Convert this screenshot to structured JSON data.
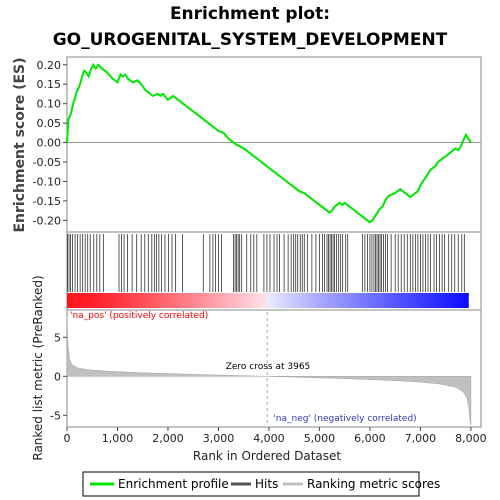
{
  "chart_data": {
    "type": "line",
    "title": "Enrichment plot:",
    "subtitle": "GO_UROGENITAL_SYSTEM_DEVELOPMENT",
    "xlabel": "Rank in Ordered Dataset",
    "xlim": [
      0,
      8200
    ],
    "x_ticks": [
      "0",
      "1,000",
      "2,000",
      "3,000",
      "4,000",
      "5,000",
      "6,000",
      "7,000",
      "8,000"
    ],
    "x_tick_values": [
      0,
      1000,
      2000,
      3000,
      4000,
      5000,
      6000,
      7000,
      8000
    ],
    "es_panel": {
      "ylabel": "Enrichment score (ES)",
      "ylim": [
        -0.23,
        0.22
      ],
      "y_ticks": [
        "0.20",
        "0.15",
        "0.10",
        "0.05",
        "0.00",
        "-0.05",
        "-0.10",
        "-0.15",
        "-0.20"
      ],
      "y_tick_values": [
        0.2,
        0.15,
        0.1,
        0.05,
        0.0,
        -0.05,
        -0.1,
        -0.15,
        -0.2
      ],
      "series": [
        {
          "name": "Enrichment profile",
          "color": "#00e600",
          "x": [
            0,
            30,
            80,
            120,
            150,
            190,
            230,
            270,
            300,
            340,
            380,
            430,
            480,
            520,
            570,
            620,
            700,
            800,
            900,
            1000,
            1060,
            1100,
            1150,
            1200,
            1300,
            1400,
            1500,
            1550,
            1600,
            1700,
            1800,
            1850,
            1900,
            2000,
            2100,
            2200,
            2300,
            2400,
            2500,
            2600,
            2700,
            2800,
            2900,
            3000,
            3100,
            3200,
            3300,
            3350,
            3400,
            3500,
            3600,
            3700,
            3800,
            3900,
            4000,
            4100,
            4200,
            4300,
            4400,
            4500,
            4600,
            4700,
            4800,
            4900,
            5000,
            5100,
            5150,
            5200,
            5250,
            5300,
            5350,
            5400,
            5450,
            5500,
            5600,
            5700,
            5800,
            5900,
            5950,
            6000,
            6050,
            6100,
            6150,
            6200,
            6250,
            6300,
            6350,
            6400,
            6500,
            6550,
            6600,
            6650,
            6700,
            6800,
            6900,
            6950,
            7000,
            7050,
            7100,
            7150,
            7200,
            7300,
            7350,
            7400,
            7450,
            7500,
            7600,
            7650,
            7700,
            7750,
            7800,
            7850,
            7900,
            7950,
            8000
          ],
          "y": [
            0.0,
            0.06,
            0.075,
            0.1,
            0.11,
            0.13,
            0.14,
            0.155,
            0.17,
            0.185,
            0.18,
            0.17,
            0.19,
            0.2,
            0.19,
            0.2,
            0.19,
            0.18,
            0.165,
            0.155,
            0.175,
            0.17,
            0.175,
            0.165,
            0.155,
            0.16,
            0.145,
            0.135,
            0.13,
            0.12,
            0.125,
            0.12,
            0.125,
            0.11,
            0.12,
            0.11,
            0.1,
            0.09,
            0.08,
            0.07,
            0.06,
            0.05,
            0.04,
            0.03,
            0.025,
            0.01,
            0.0,
            -0.005,
            -0.008,
            -0.015,
            -0.025,
            -0.035,
            -0.045,
            -0.055,
            -0.065,
            -0.075,
            -0.085,
            -0.095,
            -0.105,
            -0.115,
            -0.125,
            -0.13,
            -0.14,
            -0.15,
            -0.16,
            -0.17,
            -0.175,
            -0.18,
            -0.175,
            -0.165,
            -0.16,
            -0.155,
            -0.16,
            -0.155,
            -0.165,
            -0.175,
            -0.185,
            -0.195,
            -0.2,
            -0.205,
            -0.2,
            -0.19,
            -0.18,
            -0.17,
            -0.165,
            -0.15,
            -0.14,
            -0.135,
            -0.13,
            -0.125,
            -0.12,
            -0.125,
            -0.13,
            -0.14,
            -0.13,
            -0.125,
            -0.11,
            -0.1,
            -0.09,
            -0.08,
            -0.07,
            -0.06,
            -0.05,
            -0.045,
            -0.04,
            -0.035,
            -0.025,
            -0.02,
            -0.015,
            -0.02,
            -0.01,
            0.005,
            0.02,
            0.01,
            0.0
          ]
        }
      ]
    },
    "hits_panel": {
      "label": "Hits",
      "positions": [
        10,
        40,
        70,
        110,
        160,
        210,
        260,
        310,
        360,
        410,
        460,
        530,
        590,
        650,
        720,
        1030,
        1080,
        1130,
        1200,
        1290,
        1380,
        1470,
        1540,
        1610,
        1680,
        1730,
        1770,
        1820,
        1870,
        1940,
        2010,
        2080,
        2150,
        2290,
        2700,
        2830,
        2890,
        2940,
        3000,
        3060,
        3300,
        3330,
        3360,
        3390,
        3420,
        3460,
        3560,
        3640,
        3700,
        3760,
        3900,
        3960,
        4020,
        4100,
        4160,
        4210,
        4300,
        4380,
        4440,
        4490,
        4530,
        4570,
        4620,
        4660,
        4700,
        4760,
        4850,
        4930,
        5000,
        5060,
        5100,
        5150,
        5180,
        5210,
        5240,
        5270,
        5300,
        5340,
        5380,
        5420,
        5460,
        5520,
        5560,
        5850,
        5900,
        5950,
        6000,
        6040,
        6080,
        6110,
        6140,
        6170,
        6200,
        6230,
        6270,
        6310,
        6350,
        6420,
        6500,
        6560,
        6620,
        6680,
        6740,
        6800,
        6850,
        6900,
        6950,
        7000,
        7050,
        7100,
        7150,
        7200,
        7270,
        7320,
        7380,
        7430,
        7480,
        7560,
        7620,
        7680,
        7750,
        7820,
        7870
      ]
    },
    "ranked_panel": {
      "ylabel": "Ranked list metric (PreRanked)",
      "ylim": [
        -6.5,
        8.5
      ],
      "y_ticks": [
        "5",
        "0",
        "-5"
      ],
      "y_tick_values": [
        5,
        0,
        -5
      ],
      "x": [
        0,
        20,
        50,
        100,
        200,
        400,
        800,
        1500,
        2500,
        3500,
        3965,
        4500,
        5500,
        6500,
        7000,
        7400,
        7700,
        7850,
        7920,
        7960,
        7985,
        8000
      ],
      "y": [
        7.5,
        4.0,
        2.2,
        1.5,
        1.1,
        0.85,
        0.65,
        0.45,
        0.25,
        0.08,
        0.0,
        -0.1,
        -0.3,
        -0.55,
        -0.75,
        -1.0,
        -1.4,
        -2.0,
        -2.8,
        -4.0,
        -5.8,
        -6.3
      ]
    },
    "annotations": {
      "pos_label": "'na_pos' (positively correlated)",
      "neg_label": "'na_neg' (negatively correlated)",
      "zero_cross": "Zero cross at 3965",
      "zero_cross_x": 3965
    },
    "legend": {
      "items": [
        {
          "name": "Enrichment profile",
          "color": "#00e600"
        },
        {
          "name": "Hits",
          "color": "#555555"
        },
        {
          "name": "Ranking metric scores",
          "color": "#c0c0c0"
        }
      ],
      "placement": "bottom"
    },
    "colors": {
      "positive": "#ff0000",
      "negative": "#0000ff",
      "pos_label": "#ff0000",
      "neg_label": "#3333cc"
    }
  }
}
